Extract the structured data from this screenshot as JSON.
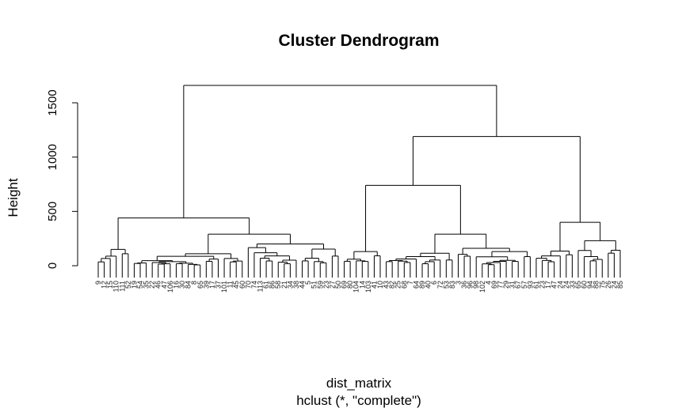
{
  "chart_data": {
    "type": "dendrogram",
    "title": "Cluster Dendrogram",
    "ylabel": "Height",
    "xlabel": "dist_matrix",
    "sublabel": "hclust (*, \"complete\")",
    "ylim": [
      0,
      1700
    ],
    "yticks": [
      0,
      500,
      1000,
      1500
    ],
    "leaf_count": 88,
    "leaf_labels": [
      "9",
      "12",
      "15",
      "110",
      "111",
      "52",
      "19",
      "54",
      "35",
      "22",
      "46",
      "47",
      "106",
      "16",
      "30",
      "84",
      "8",
      "65",
      "39",
      "17",
      "37",
      "101",
      "11",
      "45",
      "60",
      "70",
      "74",
      "113",
      "61",
      "86",
      "58",
      "21",
      "34",
      "38",
      "44",
      "5",
      "51",
      "59",
      "23",
      "27",
      "50",
      "69",
      "80",
      "104",
      "14",
      "103",
      "41",
      "10",
      "43",
      "82",
      "25",
      "68",
      "7",
      "64",
      "89",
      "40",
      "6",
      "72",
      "53",
      "83",
      "3",
      "36",
      "96",
      "98",
      "102",
      "4",
      "69",
      "77",
      "29",
      "31",
      "67",
      "57",
      "93",
      "61",
      "23",
      "17",
      "47",
      "24",
      "24",
      "33",
      "65",
      "60",
      "94",
      "88",
      "75",
      "26",
      "24",
      "85"
    ],
    "clusters": [
      {
        "members": [
          0,
          6
        ],
        "height": 150
      },
      {
        "members": [
          6,
          41
        ],
        "height": 290
      },
      {
        "members": [
          0,
          41
        ],
        "height": 440
      },
      {
        "members": [
          41,
          48
        ],
        "height": 130
      },
      {
        "members": [
          48,
          60
        ],
        "height": 290
      },
      {
        "members": [
          60,
          73
        ],
        "height": 160
      },
      {
        "members": [
          48,
          73
        ],
        "height": 740
      },
      {
        "members": [
          73,
          80
        ],
        "height": 135
      },
      {
        "members": [
          80,
          88
        ],
        "height": 230
      },
      {
        "members": [
          73,
          88
        ],
        "height": 400
      },
      {
        "members": [
          48,
          88
        ],
        "height": 1190
      },
      {
        "members": [
          0,
          88
        ],
        "height": 1660
      }
    ]
  }
}
